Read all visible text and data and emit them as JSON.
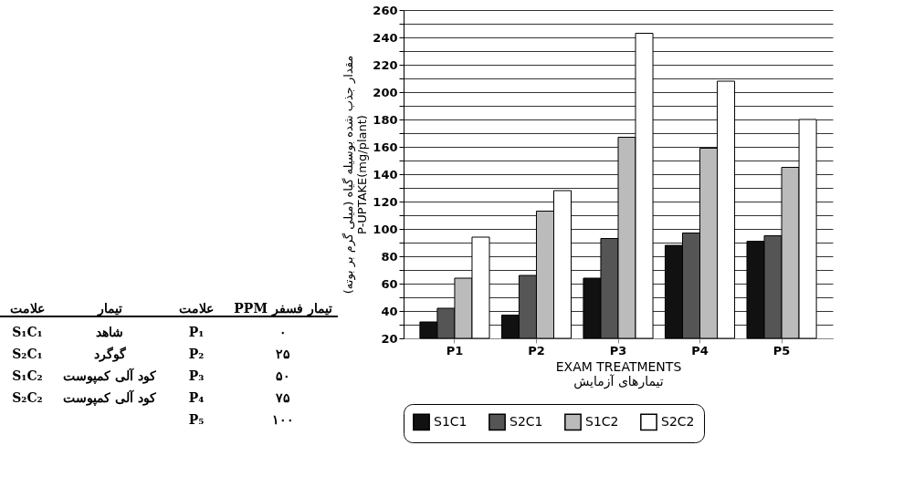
{
  "chart_data": {
    "type": "bar",
    "xlabel": "EXAM TREATMENTS\nتیمارهای آزمایش",
    "ylabel": "مقدار جذب شده بوسیله گیاه (میلی گرم بر بوته)\nP-UPTAKE(mg/plant)",
    "categories": [
      "P1",
      "P2",
      "P3",
      "P4",
      "P5"
    ],
    "series": [
      {
        "name": "S1C1",
        "color": "#111111",
        "values": [
          32,
          37,
          64,
          88,
          91
        ]
      },
      {
        "name": "S2C1",
        "color": "#555555",
        "values": [
          42,
          66,
          93,
          97,
          95
        ]
      },
      {
        "name": "S1C2",
        "color": "#bbbbbb",
        "values": [
          64,
          113,
          167,
          159,
          145
        ]
      },
      {
        "name": "S2C2",
        "color": "#ffffff",
        "values": [
          94,
          128,
          243,
          208,
          180
        ]
      }
    ],
    "ylim": [
      20,
      260
    ],
    "yticks": [
      20,
      {
        "value": 30,
        "label": null
      },
      40,
      {
        "value": 50,
        "label": null
      },
      60,
      {
        "value": 70,
        "label": null
      },
      80,
      {
        "value": 90,
        "label": null
      },
      100,
      {
        "value": 110,
        "label": null
      },
      120,
      {
        "value": 130,
        "label": null
      },
      140,
      {
        "value": 150,
        "label": null
      },
      160,
      {
        "value": 170,
        "label": null
      },
      180,
      {
        "value": 190,
        "label": null
      },
      200,
      {
        "value": 210,
        "label": null
      },
      220,
      {
        "value": 230,
        "label": null
      },
      240,
      {
        "value": 250,
        "label": null
      },
      260
    ],
    "grid": "y",
    "legend": "bottom",
    "annotations": [
      "تیمار فسفر PPM",
      "علامت",
      "تیمار",
      "علامت",
      "۰",
      "P₁",
      "شاهد",
      "S₁C₁",
      "۲۵",
      "P₂",
      "گوگرد",
      "S₂C₁",
      "۵۰",
      "P₃",
      "کود آلی کمپوست",
      "S₁C₂",
      "۷۵",
      "P₄",
      "کود آلی کمپوست",
      "S₂C₂",
      "۱۰۰",
      "P₅"
    ]
  }
}
